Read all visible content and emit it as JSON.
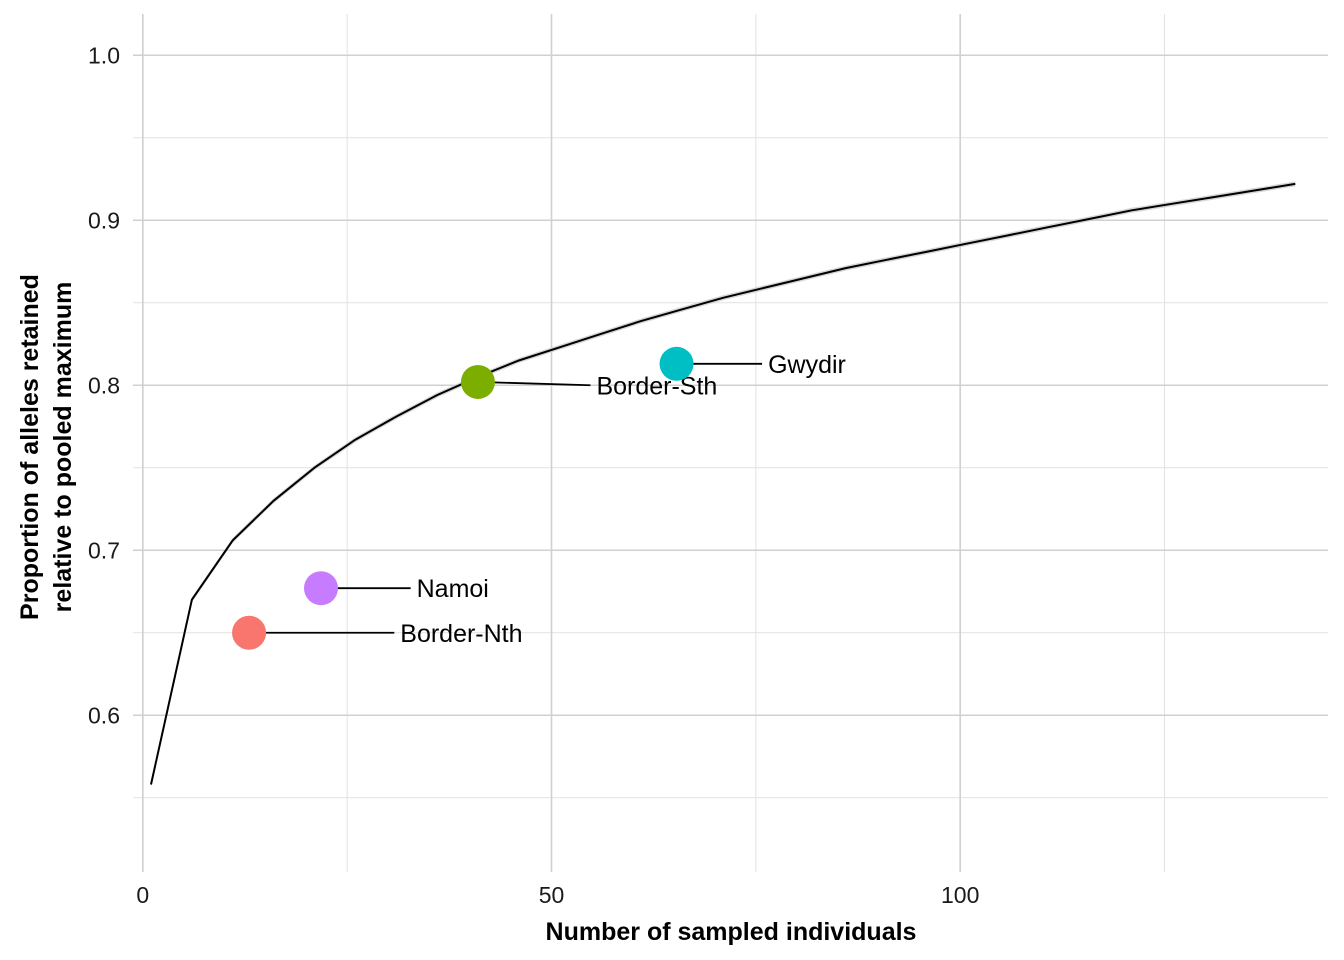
{
  "chart_data": {
    "type": "line",
    "xlabel": "Number of sampled individuals",
    "ylabel_lines": [
      "Proportion of alleles retained",
      "relative to pooled maximum"
    ],
    "xlim": [
      -1.2,
      145
    ],
    "ylim": [
      0.505,
      1.025
    ],
    "x_ticks": [
      0,
      50,
      100
    ],
    "x_tick_labels": [
      "0",
      "50",
      "100"
    ],
    "x_minor_ticks": [
      25,
      75,
      125
    ],
    "y_ticks": [
      0.6,
      0.7,
      0.8,
      0.9,
      1.0
    ],
    "y_tick_labels": [
      "0.6",
      "0.7",
      "0.8",
      "0.9",
      "1.0"
    ],
    "y_minor_ticks": [
      0.55,
      0.65,
      0.75,
      0.85,
      0.95
    ],
    "grid": true,
    "curve": {
      "color": "#000000",
      "ribbon_color": "#cccccc",
      "x": [
        1,
        6,
        11,
        16,
        21,
        26,
        31,
        36,
        41,
        46,
        51,
        56,
        61,
        66,
        71,
        76,
        81,
        86,
        91,
        96,
        101,
        106,
        111,
        116,
        121,
        126,
        131,
        136,
        141
      ],
      "y": [
        0.558,
        0.67,
        0.706,
        0.73,
        0.75,
        0.767,
        0.781,
        0.794,
        0.805,
        0.815,
        0.823,
        0.831,
        0.839,
        0.846,
        0.853,
        0.859,
        0.865,
        0.871,
        0.876,
        0.881,
        0.886,
        0.891,
        0.896,
        0.901,
        0.906,
        0.91,
        0.914,
        0.918,
        0.922
      ]
    },
    "points": [
      {
        "label": "Border-Nth",
        "x": 13,
        "y": 0.65,
        "color": "#F8766D",
        "label_x": 31.5,
        "label_y": 0.65
      },
      {
        "label": "Namoi",
        "x": 21.8,
        "y": 0.677,
        "color": "#C77CFF",
        "label_x": 33.5,
        "label_y": 0.677
      },
      {
        "label": "Border-Sth",
        "x": 41,
        "y": 0.802,
        "color": "#7CAE00",
        "label_x": 55.5,
        "label_y": 0.8
      },
      {
        "label": "Gwydir",
        "x": 65.3,
        "y": 0.813,
        "color": "#00BFC4",
        "label_x": 76.5,
        "label_y": 0.813
      }
    ]
  }
}
